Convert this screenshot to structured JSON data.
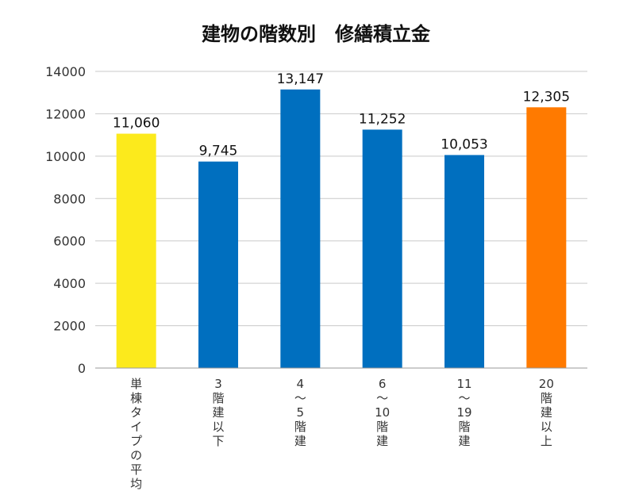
{
  "chart_data": {
    "type": "bar",
    "title": "建物の階数別　修繕積立金",
    "categories": [
      "単棟タイプの平均",
      "3階建以下",
      "4～5階建",
      "6～10階建",
      "11～19階建",
      "20階建以上"
    ],
    "category_label_lines": [
      [
        "単",
        "棟",
        "タ",
        "イ",
        "プ",
        "の",
        "平",
        "均"
      ],
      [
        "3",
        "階",
        "建",
        "以",
        "下"
      ],
      [
        "4",
        "～",
        "5",
        "階",
        "建"
      ],
      [
        "6",
        "～",
        "10",
        "階",
        "建"
      ],
      [
        "11",
        "～",
        "19",
        "階",
        "建"
      ],
      [
        "20",
        "階",
        "建",
        "以",
        "上"
      ]
    ],
    "values": [
      11060,
      9745,
      13147,
      11252,
      10053,
      12305
    ],
    "value_labels": [
      "11,060",
      "9,745",
      "13,147",
      "11,252",
      "10,053",
      "12,305"
    ],
    "colors": [
      "#fcea1c",
      "#006fbf",
      "#006fbf",
      "#006fbf",
      "#006fbf",
      "#ff7a00"
    ],
    "yticks": [
      "0",
      "2000",
      "4000",
      "6000",
      "8000",
      "10000",
      "12000",
      "14000"
    ],
    "ylim": [
      0,
      14000
    ],
    "grid": true,
    "legend": "none"
  }
}
